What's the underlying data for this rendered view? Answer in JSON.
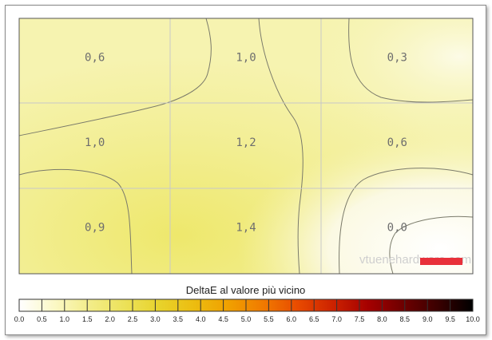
{
  "chart_data": {
    "type": "heatmap",
    "rows": 3,
    "cols": 3,
    "values": [
      [
        "0,6",
        "1,0",
        "0,3"
      ],
      [
        "1,0",
        "1,2",
        "0,6"
      ],
      [
        "0,9",
        "1,4",
        "0,0"
      ]
    ],
    "numeric_values": [
      [
        0.6,
        1.0,
        0.3
      ],
      [
        1.0,
        1.2,
        0.6
      ],
      [
        0.9,
        1.4,
        0.0
      ]
    ],
    "colorbar": {
      "title": "DeltaE al valore più vicino",
      "ticks": [
        "0.0",
        "0.5",
        "1.0",
        "1.5",
        "2.0",
        "2.5",
        "3.0",
        "3.5",
        "4.0",
        "4.5",
        "5.0",
        "5.5",
        "6.0",
        "6.5",
        "7.0",
        "7.5",
        "8.0",
        "8.5",
        "9.0",
        "9.5",
        "10.0"
      ],
      "range": [
        0,
        10
      ],
      "colors": [
        "#ffffff",
        "#fbf8c6",
        "#f3ed8a",
        "#ece25a",
        "#e8d32c",
        "#ecbd10",
        "#f0a000",
        "#f07a00",
        "#e84a00",
        "#cc2200",
        "#a50000",
        "#6e0000",
        "#3a0000",
        "#000000"
      ]
    },
    "marker_color": "#e8303a",
    "watermark": "vtuenehardware.com"
  }
}
